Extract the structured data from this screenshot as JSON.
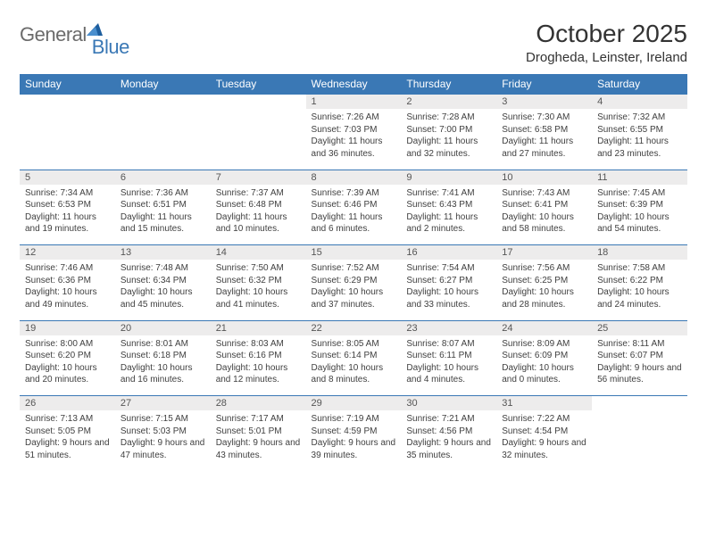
{
  "brand": {
    "word1": "General",
    "word2": "Blue",
    "tri_color": "#1d5e9e"
  },
  "title": "October 2025",
  "location": "Drogheda, Leinster, Ireland",
  "colors": {
    "header_bg": "#3a78b5",
    "header_text": "#ffffff",
    "daynum_bg": "#edecec",
    "rule": "#3a78b5",
    "text": "#404040",
    "bg": "#ffffff"
  },
  "day_headers": [
    "Sunday",
    "Monday",
    "Tuesday",
    "Wednesday",
    "Thursday",
    "Friday",
    "Saturday"
  ],
  "weeks": [
    [
      null,
      null,
      null,
      {
        "n": "1",
        "sr": "7:26 AM",
        "ss": "7:03 PM",
        "dl": "11 hours and 36 minutes."
      },
      {
        "n": "2",
        "sr": "7:28 AM",
        "ss": "7:00 PM",
        "dl": "11 hours and 32 minutes."
      },
      {
        "n": "3",
        "sr": "7:30 AM",
        "ss": "6:58 PM",
        "dl": "11 hours and 27 minutes."
      },
      {
        "n": "4",
        "sr": "7:32 AM",
        "ss": "6:55 PM",
        "dl": "11 hours and 23 minutes."
      }
    ],
    [
      {
        "n": "5",
        "sr": "7:34 AM",
        "ss": "6:53 PM",
        "dl": "11 hours and 19 minutes."
      },
      {
        "n": "6",
        "sr": "7:36 AM",
        "ss": "6:51 PM",
        "dl": "11 hours and 15 minutes."
      },
      {
        "n": "7",
        "sr": "7:37 AM",
        "ss": "6:48 PM",
        "dl": "11 hours and 10 minutes."
      },
      {
        "n": "8",
        "sr": "7:39 AM",
        "ss": "6:46 PM",
        "dl": "11 hours and 6 minutes."
      },
      {
        "n": "9",
        "sr": "7:41 AM",
        "ss": "6:43 PM",
        "dl": "11 hours and 2 minutes."
      },
      {
        "n": "10",
        "sr": "7:43 AM",
        "ss": "6:41 PM",
        "dl": "10 hours and 58 minutes."
      },
      {
        "n": "11",
        "sr": "7:45 AM",
        "ss": "6:39 PM",
        "dl": "10 hours and 54 minutes."
      }
    ],
    [
      {
        "n": "12",
        "sr": "7:46 AM",
        "ss": "6:36 PM",
        "dl": "10 hours and 49 minutes."
      },
      {
        "n": "13",
        "sr": "7:48 AM",
        "ss": "6:34 PM",
        "dl": "10 hours and 45 minutes."
      },
      {
        "n": "14",
        "sr": "7:50 AM",
        "ss": "6:32 PM",
        "dl": "10 hours and 41 minutes."
      },
      {
        "n": "15",
        "sr": "7:52 AM",
        "ss": "6:29 PM",
        "dl": "10 hours and 37 minutes."
      },
      {
        "n": "16",
        "sr": "7:54 AM",
        "ss": "6:27 PM",
        "dl": "10 hours and 33 minutes."
      },
      {
        "n": "17",
        "sr": "7:56 AM",
        "ss": "6:25 PM",
        "dl": "10 hours and 28 minutes."
      },
      {
        "n": "18",
        "sr": "7:58 AM",
        "ss": "6:22 PM",
        "dl": "10 hours and 24 minutes."
      }
    ],
    [
      {
        "n": "19",
        "sr": "8:00 AM",
        "ss": "6:20 PM",
        "dl": "10 hours and 20 minutes."
      },
      {
        "n": "20",
        "sr": "8:01 AM",
        "ss": "6:18 PM",
        "dl": "10 hours and 16 minutes."
      },
      {
        "n": "21",
        "sr": "8:03 AM",
        "ss": "6:16 PM",
        "dl": "10 hours and 12 minutes."
      },
      {
        "n": "22",
        "sr": "8:05 AM",
        "ss": "6:14 PM",
        "dl": "10 hours and 8 minutes."
      },
      {
        "n": "23",
        "sr": "8:07 AM",
        "ss": "6:11 PM",
        "dl": "10 hours and 4 minutes."
      },
      {
        "n": "24",
        "sr": "8:09 AM",
        "ss": "6:09 PM",
        "dl": "10 hours and 0 minutes."
      },
      {
        "n": "25",
        "sr": "8:11 AM",
        "ss": "6:07 PM",
        "dl": "9 hours and 56 minutes."
      }
    ],
    [
      {
        "n": "26",
        "sr": "7:13 AM",
        "ss": "5:05 PM",
        "dl": "9 hours and 51 minutes."
      },
      {
        "n": "27",
        "sr": "7:15 AM",
        "ss": "5:03 PM",
        "dl": "9 hours and 47 minutes."
      },
      {
        "n": "28",
        "sr": "7:17 AM",
        "ss": "5:01 PM",
        "dl": "9 hours and 43 minutes."
      },
      {
        "n": "29",
        "sr": "7:19 AM",
        "ss": "4:59 PM",
        "dl": "9 hours and 39 minutes."
      },
      {
        "n": "30",
        "sr": "7:21 AM",
        "ss": "4:56 PM",
        "dl": "9 hours and 35 minutes."
      },
      {
        "n": "31",
        "sr": "7:22 AM",
        "ss": "4:54 PM",
        "dl": "9 hours and 32 minutes."
      },
      null
    ]
  ],
  "labels": {
    "sunrise": "Sunrise:",
    "sunset": "Sunset:",
    "daylight": "Daylight:"
  }
}
